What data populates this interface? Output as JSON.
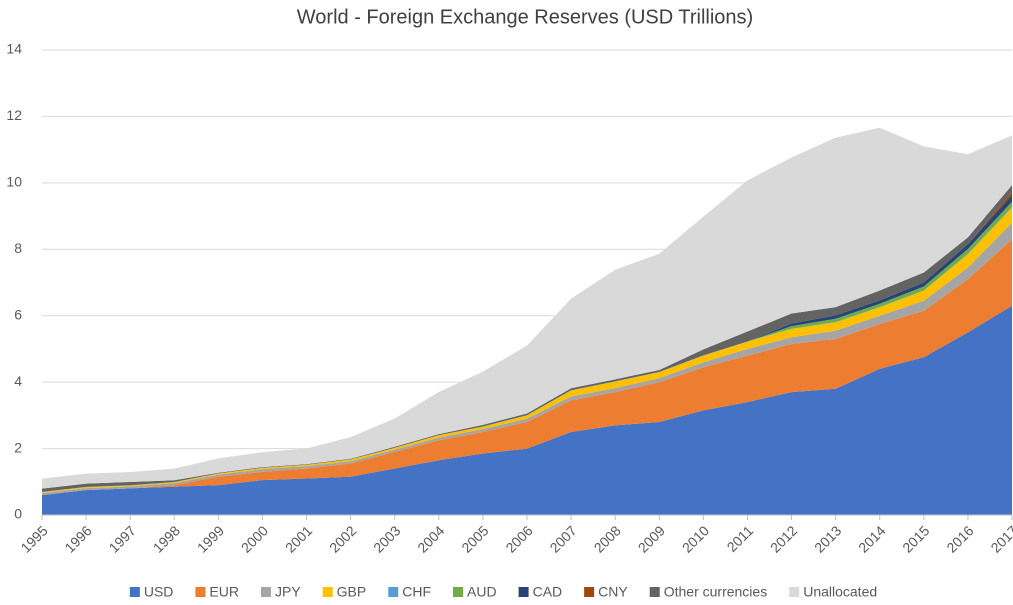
{
  "chart_data": {
    "type": "stacked_area",
    "title": "World - Foreign Exchange Reserves (USD Trillions)",
    "x": [
      1995,
      1996,
      1997,
      1998,
      1999,
      2000,
      2001,
      2002,
      2003,
      2004,
      2005,
      2006,
      2007,
      2008,
      2009,
      2010,
      2011,
      2012,
      2013,
      2014,
      2015,
      2016,
      2017
    ],
    "xlim": [
      1995,
      2017
    ],
    "xticks": [
      1995,
      1996,
      1997,
      1998,
      1999,
      2000,
      2001,
      2002,
      2003,
      2004,
      2005,
      2006,
      2007,
      2008,
      2009,
      2010,
      2011,
      2012,
      2013,
      2014,
      2015,
      2016,
      2017
    ],
    "ylim": [
      0,
      14
    ],
    "yticks": [
      0,
      2,
      4,
      6,
      8,
      10,
      12,
      14
    ],
    "grid": true,
    "legend": "bottom",
    "series": [
      {
        "name": "USD",
        "color": "#4472c4",
        "values": [
          0.6,
          0.75,
          0.8,
          0.85,
          0.9,
          1.05,
          1.1,
          1.15,
          1.4,
          1.65,
          1.85,
          2.0,
          2.5,
          2.7,
          2.8,
          3.15,
          3.4,
          3.7,
          3.8,
          4.4,
          4.75,
          5.5,
          6.3
        ]
      },
      {
        "name": "EUR",
        "color": "#ed7d31",
        "values": [
          0,
          0,
          0,
          0.05,
          0.25,
          0.25,
          0.3,
          0.4,
          0.5,
          0.6,
          0.65,
          0.8,
          0.95,
          1.0,
          1.2,
          1.3,
          1.4,
          1.45,
          1.5,
          1.35,
          1.4,
          1.6,
          2.0
        ]
      },
      {
        "name": "JPY",
        "color": "#a5a5a5",
        "values": [
          0.06,
          0.06,
          0.06,
          0.06,
          0.07,
          0.08,
          0.07,
          0.07,
          0.07,
          0.08,
          0.09,
          0.1,
          0.12,
          0.12,
          0.12,
          0.15,
          0.2,
          0.2,
          0.25,
          0.25,
          0.3,
          0.35,
          0.5
        ]
      },
      {
        "name": "GBP",
        "color": "#ffc000",
        "values": [
          0.03,
          0.03,
          0.03,
          0.03,
          0.03,
          0.04,
          0.04,
          0.05,
          0.05,
          0.07,
          0.07,
          0.1,
          0.18,
          0.2,
          0.18,
          0.2,
          0.22,
          0.25,
          0.25,
          0.25,
          0.3,
          0.4,
          0.45
        ]
      },
      {
        "name": "CHF",
        "color": "#5b9bd5",
        "values": [
          0.005,
          0.005,
          0.005,
          0.005,
          0.003,
          0.003,
          0.003,
          0.004,
          0.004,
          0.004,
          0.005,
          0.005,
          0.005,
          0.005,
          0.005,
          0.005,
          0.005,
          0.005,
          0.01,
          0.01,
          0.01,
          0.01,
          0.02
        ]
      },
      {
        "name": "AUD",
        "color": "#70ad47",
        "values": [
          0,
          0,
          0,
          0,
          0,
          0,
          0,
          0,
          0,
          0,
          0,
          0,
          0,
          0,
          0,
          0,
          0,
          0.08,
          0.1,
          0.1,
          0.12,
          0.15,
          0.16
        ]
      },
      {
        "name": "CAD",
        "color": "#264478",
        "values": [
          0,
          0,
          0,
          0,
          0,
          0,
          0,
          0,
          0,
          0,
          0,
          0,
          0,
          0,
          0,
          0,
          0,
          0.08,
          0.1,
          0.1,
          0.12,
          0.15,
          0.2
        ]
      },
      {
        "name": "CNY",
        "color": "#9e480e",
        "values": [
          0,
          0,
          0,
          0,
          0,
          0,
          0,
          0,
          0,
          0,
          0,
          0,
          0,
          0,
          0,
          0,
          0,
          0,
          0,
          0,
          0,
          0,
          0.1
        ]
      },
      {
        "name": "Other currencies",
        "color": "#636363",
        "values": [
          0.1,
          0.1,
          0.1,
          0.05,
          0.02,
          0.02,
          0.02,
          0.02,
          0.03,
          0.03,
          0.05,
          0.05,
          0.06,
          0.06,
          0.06,
          0.18,
          0.3,
          0.3,
          0.25,
          0.3,
          0.3,
          0.2,
          0.2
        ]
      },
      {
        "name": "Unallocated",
        "color": "#d9d9d9",
        "values": [
          0.3,
          0.3,
          0.3,
          0.35,
          0.43,
          0.45,
          0.47,
          0.65,
          0.85,
          1.27,
          1.6,
          2.05,
          2.7,
          3.3,
          3.5,
          4.0,
          4.55,
          4.7,
          5.1,
          4.9,
          3.8,
          2.5,
          1.5
        ]
      }
    ]
  }
}
